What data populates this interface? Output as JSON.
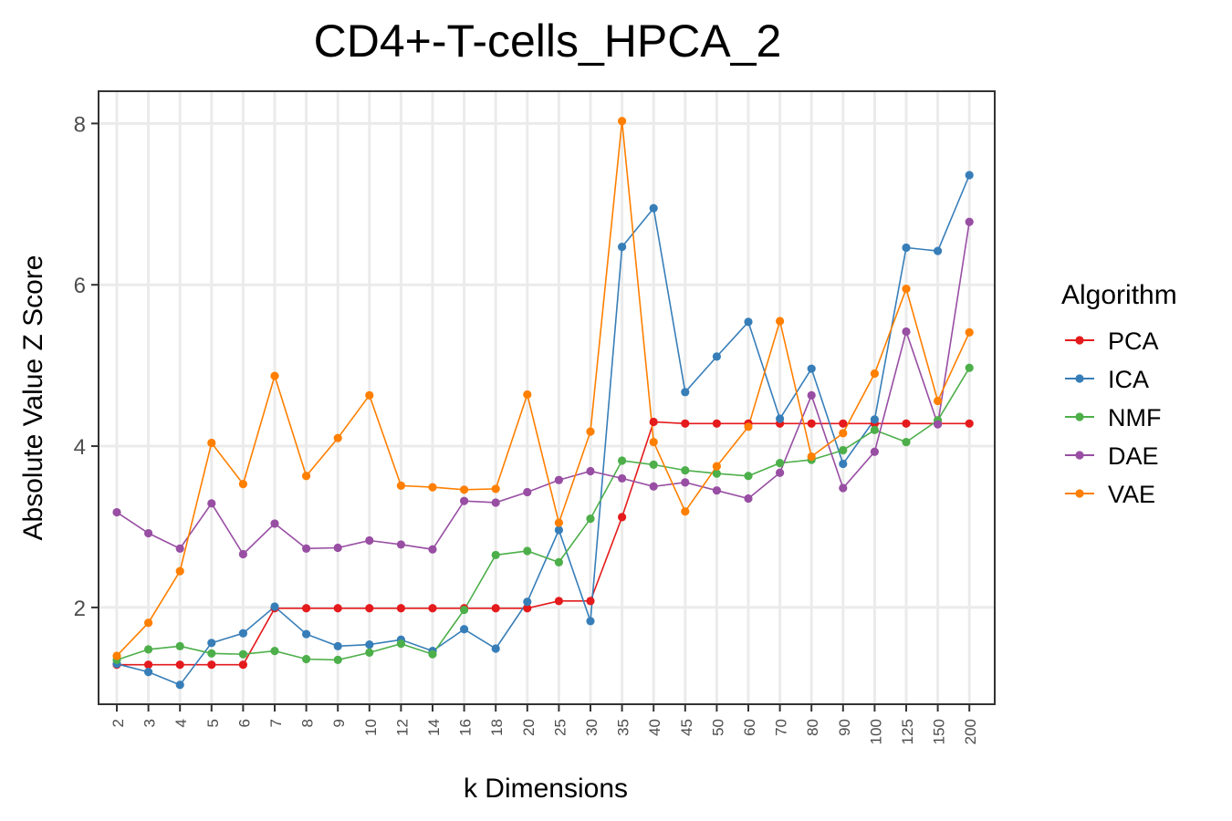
{
  "chart_data": {
    "type": "line",
    "title": "CD4+-T-cells_HPCA_2",
    "xlabel": "k Dimensions",
    "ylabel": "Absolute Value Z Score",
    "categories": [
      "2",
      "3",
      "4",
      "5",
      "6",
      "7",
      "8",
      "9",
      "10",
      "12",
      "14",
      "16",
      "18",
      "20",
      "25",
      "30",
      "35",
      "40",
      "45",
      "50",
      "60",
      "70",
      "80",
      "90",
      "100",
      "125",
      "150",
      "200"
    ],
    "ylim": [
      0.8,
      8.4
    ],
    "yticks": [
      2,
      4,
      6,
      8
    ],
    "grid": true,
    "legend_title": "Algorithm",
    "legend_position": "right",
    "series": [
      {
        "name": "PCA",
        "color": "#e41a1c",
        "values": [
          1.29,
          1.29,
          1.29,
          1.29,
          1.29,
          1.99,
          1.99,
          1.99,
          1.99,
          1.99,
          1.99,
          1.99,
          1.99,
          1.99,
          2.08,
          2.08,
          3.12,
          4.3,
          4.28,
          4.28,
          4.28,
          4.28,
          4.28,
          4.28,
          4.28,
          4.28,
          4.28,
          4.28
        ]
      },
      {
        "name": "ICA",
        "color": "#377eb8",
        "values": [
          1.3,
          1.2,
          1.04,
          1.56,
          1.68,
          2.01,
          1.67,
          1.52,
          1.54,
          1.6,
          1.46,
          1.73,
          1.49,
          2.07,
          2.96,
          1.83,
          6.47,
          6.95,
          4.67,
          5.11,
          5.54,
          4.34,
          4.96,
          3.78,
          4.33,
          6.46,
          6.42,
          7.36
        ]
      },
      {
        "name": "NMF",
        "color": "#4daf4a",
        "values": [
          1.35,
          1.48,
          1.52,
          1.43,
          1.42,
          1.46,
          1.36,
          1.35,
          1.44,
          1.55,
          1.42,
          1.97,
          2.65,
          2.7,
          2.56,
          3.1,
          3.82,
          3.77,
          3.7,
          3.66,
          3.63,
          3.79,
          3.83,
          3.95,
          4.2,
          4.05,
          4.32,
          4.97
        ]
      },
      {
        "name": "DAE",
        "color": "#984ea3",
        "values": [
          3.18,
          2.92,
          2.73,
          3.29,
          2.66,
          3.04,
          2.73,
          2.74,
          2.83,
          2.78,
          2.72,
          3.32,
          3.3,
          3.43,
          3.58,
          3.69,
          3.6,
          3.5,
          3.55,
          3.45,
          3.35,
          3.67,
          4.63,
          3.48,
          3.93,
          5.42,
          4.27,
          6.78
        ]
      },
      {
        "name": "VAE",
        "color": "#ff7f00",
        "values": [
          1.4,
          1.81,
          2.45,
          4.04,
          3.53,
          4.87,
          3.63,
          4.1,
          4.63,
          3.51,
          3.49,
          3.46,
          3.47,
          4.64,
          3.05,
          4.18,
          8.03,
          4.05,
          3.19,
          3.75,
          4.24,
          5.55,
          3.87,
          4.16,
          4.9,
          5.95,
          4.56,
          5.41
        ]
      }
    ]
  }
}
